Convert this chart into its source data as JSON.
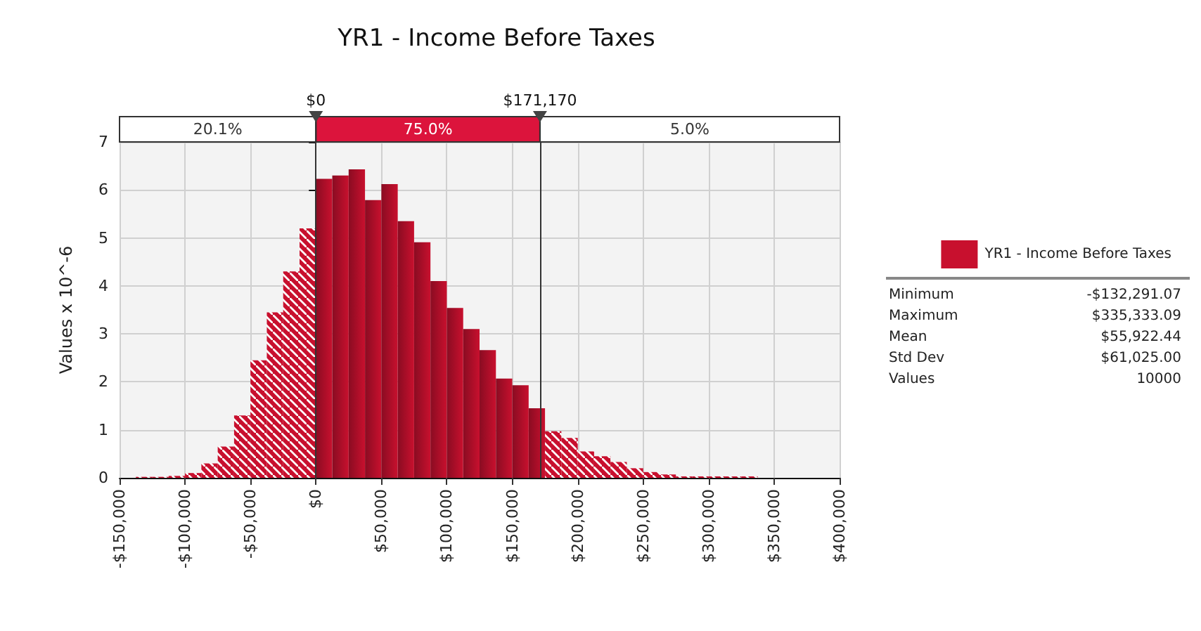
{
  "chart_data": {
    "type": "histogram",
    "title": "YR1 - Income Before Taxes",
    "ylabel": "Values x 10^-6",
    "bins": [
      -137500,
      -125000,
      -112500,
      -100000,
      -87500,
      -75000,
      -62500,
      -50000,
      -37500,
      -25000,
      -12500,
      0,
      12500,
      25000,
      37500,
      50000,
      62500,
      75000,
      87500,
      100000,
      112500,
      125000,
      137500,
      150000,
      162500,
      175000,
      187500,
      200000,
      212500,
      225000,
      237500,
      250000,
      262500,
      275000,
      287500,
      300000,
      312500,
      325000,
      337500
    ],
    "series": [
      {
        "name": "YR1 - Income Before Taxes",
        "color": "#c8102e",
        "values": [
          0.02,
          0.02,
          0.04,
          0.1,
          0.3,
          0.65,
          1.3,
          2.45,
          3.45,
          4.3,
          5.2,
          6.23,
          6.3,
          6.43,
          5.79,
          6.12,
          5.35,
          4.91,
          4.1,
          3.54,
          3.1,
          2.66,
          2.07,
          1.93,
          1.45,
          0.97,
          0.83,
          0.55,
          0.45,
          0.33,
          0.2,
          0.12,
          0.07,
          0.03,
          0.03,
          0.03,
          0.03,
          0.03
        ]
      }
    ],
    "xlim": [
      -150000,
      400000
    ],
    "xticks": [
      {
        "value": -150000,
        "label": "-$150,000"
      },
      {
        "value": -100000,
        "label": "-$100,000"
      },
      {
        "value": -50000,
        "label": "-$50,000"
      },
      {
        "value": 0,
        "label": "$0"
      },
      {
        "value": 50000,
        "label": "$50,000"
      },
      {
        "value": 100000,
        "label": "$100,000"
      },
      {
        "value": 150000,
        "label": "$150,000"
      },
      {
        "value": 200000,
        "label": "$200,000"
      },
      {
        "value": 250000,
        "label": "$250,000"
      },
      {
        "value": 300000,
        "label": "$300,000"
      },
      {
        "value": 350000,
        "label": "$350,000"
      },
      {
        "value": 400000,
        "label": "$400,000"
      }
    ],
    "ylim": [
      0,
      7
    ],
    "yticks": [
      0,
      1,
      2,
      3,
      4,
      5,
      6,
      7
    ],
    "ref_lines": [
      {
        "axis": "x",
        "value": 0,
        "label": "$0"
      },
      {
        "axis": "x",
        "value": 171170,
        "label": "$171,170"
      }
    ],
    "annotations": [
      "20.1%",
      "75.0%",
      "5.0%",
      "Minimum",
      "-$132,291.07",
      "Maximum",
      "$335,333.09",
      "Mean",
      "$55,922.44",
      "Std Dev",
      "$61,025.00",
      "Values",
      "10000"
    ],
    "grid": true,
    "legend": "right"
  }
}
